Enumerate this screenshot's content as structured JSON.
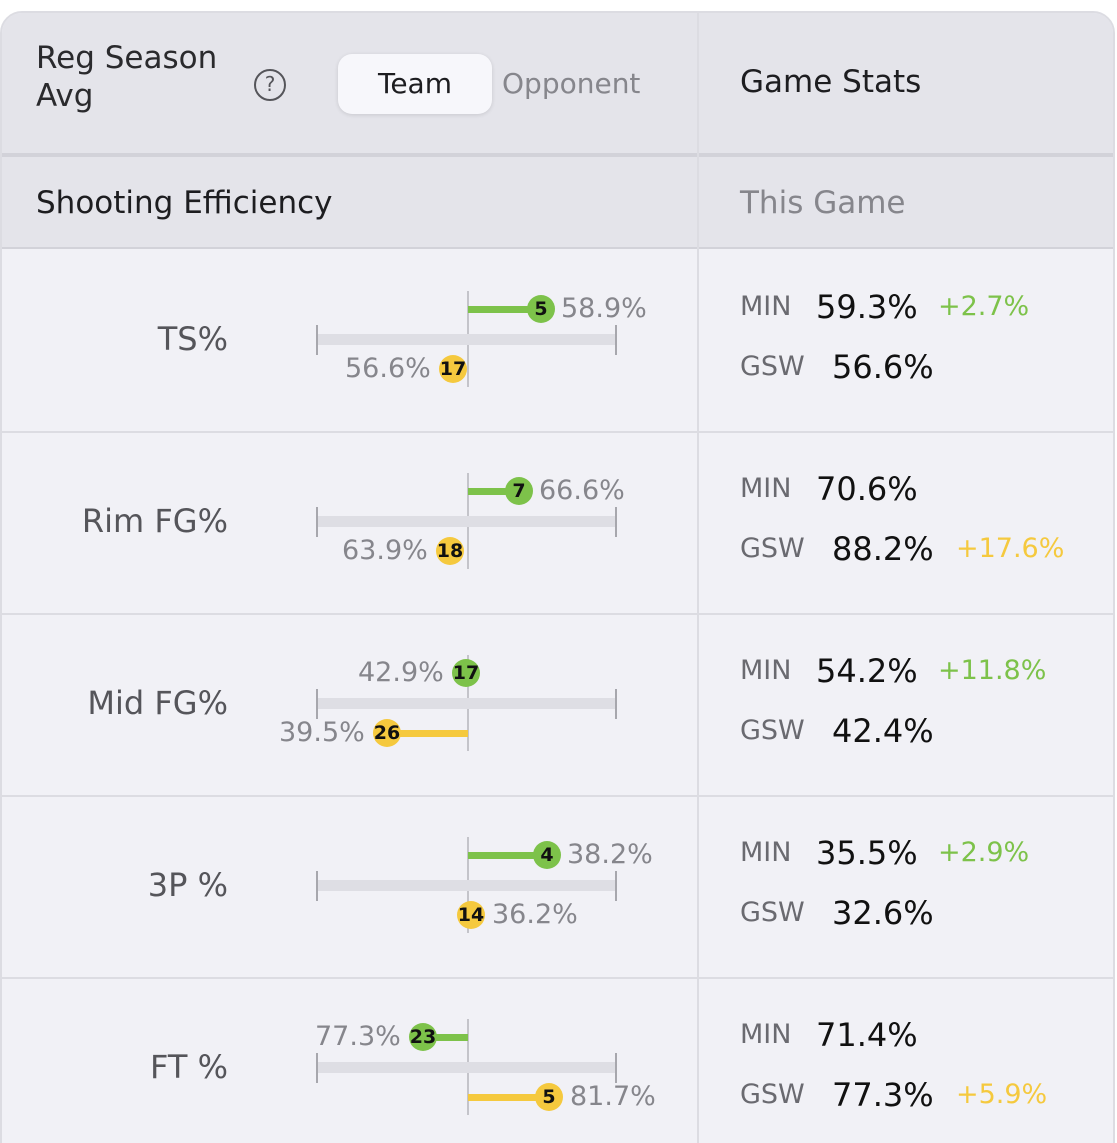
{
  "header": {
    "reg_season_title": "Reg Season Avg",
    "help_icon": "?",
    "toggle_team": "Team",
    "toggle_opponent": "Opponent",
    "game_stats_title": "Game Stats"
  },
  "subheader": {
    "section_title": "Shooting Efficiency",
    "this_game": "This Game"
  },
  "colors": {
    "team": "#7dc24a",
    "opponent": "#f5c93e"
  },
  "rows": [
    {
      "label": "TS%",
      "team_rank": "5",
      "team_value": "58.9%",
      "opp_rank": "17",
      "opp_value": "56.6%",
      "game": {
        "team_abbr": "MIN",
        "team_val": "59.3%",
        "team_diff": "+2.7%",
        "opp_abbr": "GSW",
        "opp_val": "56.6%",
        "opp_diff": ""
      }
    },
    {
      "label": "Rim FG%",
      "team_rank": "7",
      "team_value": "66.6%",
      "opp_rank": "18",
      "opp_value": "63.9%",
      "game": {
        "team_abbr": "MIN",
        "team_val": "70.6%",
        "team_diff": "",
        "opp_abbr": "GSW",
        "opp_val": "88.2%",
        "opp_diff": "+17.6%"
      }
    },
    {
      "label": "Mid FG%",
      "team_rank": "17",
      "team_value": "42.9%",
      "opp_rank": "26",
      "opp_value": "39.5%",
      "game": {
        "team_abbr": "MIN",
        "team_val": "54.2%",
        "team_diff": "+11.8%",
        "opp_abbr": "GSW",
        "opp_val": "42.4%",
        "opp_diff": ""
      }
    },
    {
      "label": "3P %",
      "team_rank": "4",
      "team_value": "38.2%",
      "opp_rank": "14",
      "opp_value": "36.2%",
      "game": {
        "team_abbr": "MIN",
        "team_val": "35.5%",
        "team_diff": "+2.9%",
        "opp_abbr": "GSW",
        "opp_val": "32.6%",
        "opp_diff": ""
      }
    },
    {
      "label": "FT %",
      "team_rank": "23",
      "team_value": "77.3%",
      "opp_rank": "5",
      "opp_value": "81.7%",
      "game": {
        "team_abbr": "MIN",
        "team_val": "71.4%",
        "team_diff": "",
        "opp_abbr": "GSW",
        "opp_val": "77.3%",
        "opp_diff": "+5.9%"
      }
    }
  ]
}
